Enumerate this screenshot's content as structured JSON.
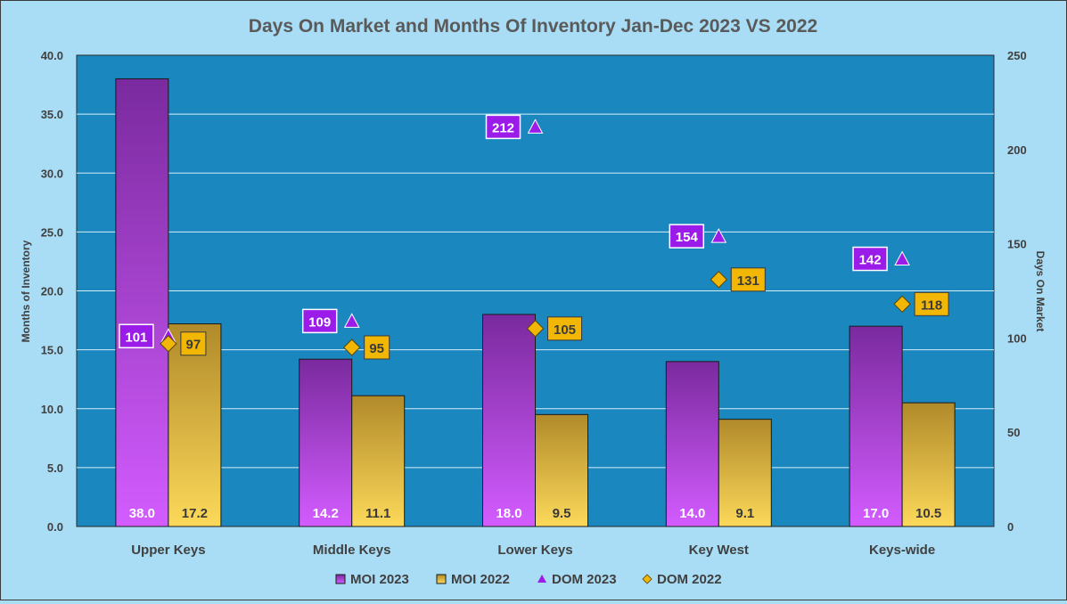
{
  "chart_data": {
    "type": "bar",
    "title": "Days On Market and Months Of Inventory Jan-Dec 2023 VS 2022",
    "categories": [
      "Upper Keys",
      "Middle Keys",
      "Lower Keys",
      "Key West",
      "Keys-wide"
    ],
    "ylabel": "Months of Inventory",
    "y2label": "Days On Market",
    "ylim": [
      0,
      40
    ],
    "y2lim": [
      0,
      250
    ],
    "yticks": [
      "0.0",
      "5.0",
      "10.0",
      "15.0",
      "20.0",
      "25.0",
      "30.0",
      "35.0",
      "40.0"
    ],
    "y2ticks": [
      "0",
      "50",
      "100",
      "150",
      "200",
      "250"
    ],
    "grid": true,
    "legend_position": "bottom",
    "bar_series": [
      {
        "name": "MOI 2023",
        "values": [
          38.0,
          14.2,
          18.0,
          14.0,
          17.0
        ],
        "labels": [
          "38.0",
          "14.2",
          "18.0",
          "14.0",
          "17.0"
        ],
        "color": "#9a3fd6"
      },
      {
        "name": "MOI 2022",
        "values": [
          17.2,
          11.1,
          9.5,
          9.1,
          10.5
        ],
        "labels": [
          "17.2",
          "11.1",
          "9.5",
          "9.1",
          "10.5"
        ],
        "color": "#d9b13a"
      }
    ],
    "marker_series": [
      {
        "name": "DOM 2023",
        "values": [
          101,
          109,
          212,
          154,
          142
        ],
        "labels": [
          "101",
          "109",
          "212",
          "154",
          "142"
        ],
        "marker": "triangle",
        "color": "#9b1be8"
      },
      {
        "name": "DOM 2022",
        "values": [
          97,
          95,
          105,
          131,
          118
        ],
        "labels": [
          "97",
          "95",
          "105",
          "131",
          "118"
        ],
        "marker": "diamond",
        "color": "#f2b705"
      }
    ],
    "colors": {
      "plot_background": "#1a87bf",
      "chart_background": "#a9dcf5",
      "gridline": "#d7eef9"
    }
  }
}
